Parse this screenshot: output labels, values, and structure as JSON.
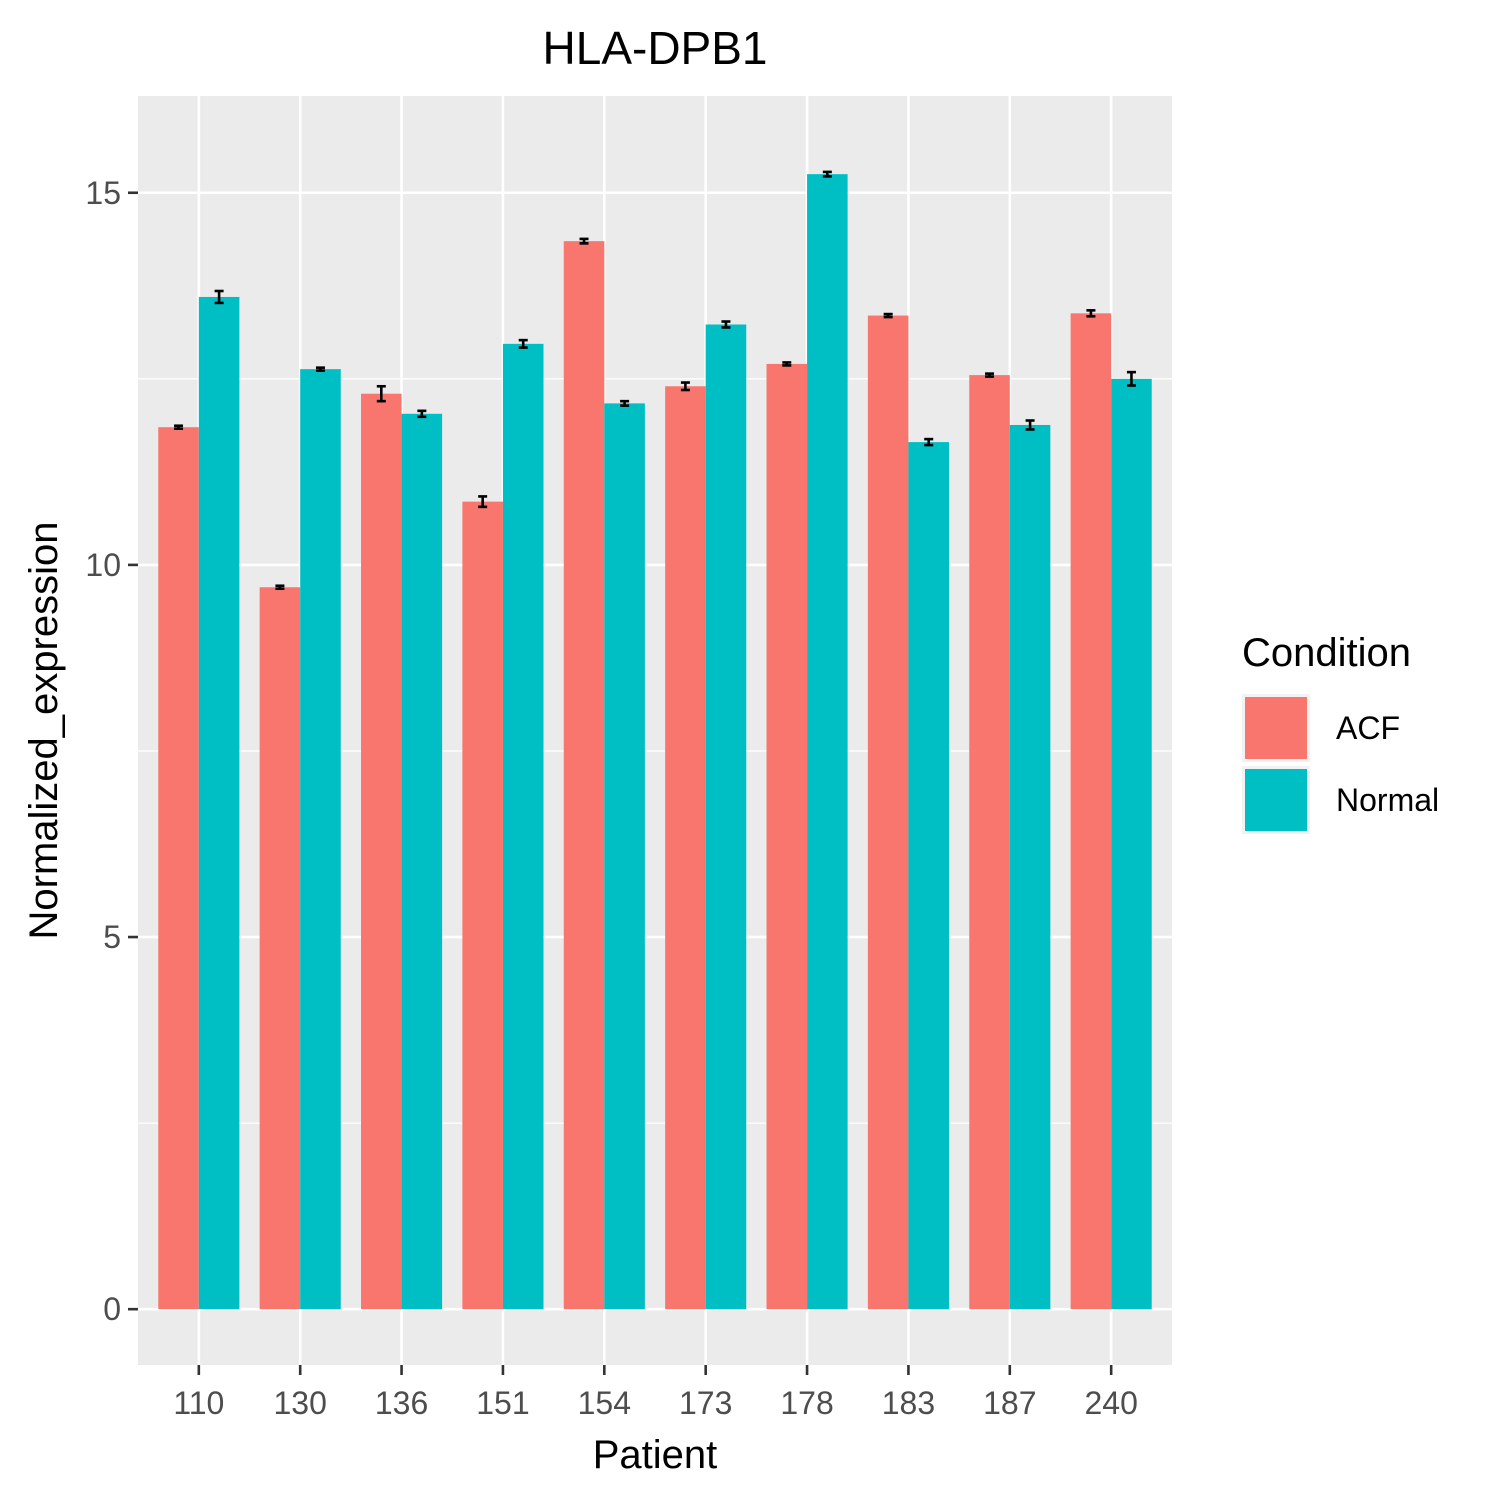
{
  "chart_data": {
    "type": "bar",
    "title": "HLA-DPB1",
    "xlabel": "Patient",
    "ylabel": "Normalized_expression",
    "categories": [
      "110",
      "130",
      "136",
      "151",
      "154",
      "173",
      "178",
      "183",
      "187",
      "240"
    ],
    "series": [
      {
        "name": "ACF",
        "color": "#F8766D",
        "values": [
          11.85,
          9.7,
          12.3,
          10.85,
          14.35,
          12.4,
          12.7,
          13.35,
          12.55,
          13.38
        ],
        "errors": [
          0.02,
          0.02,
          0.1,
          0.07,
          0.03,
          0.05,
          0.02,
          0.02,
          0.02,
          0.04
        ]
      },
      {
        "name": "Normal",
        "color": "#00BFC4",
        "values": [
          13.6,
          12.63,
          12.03,
          12.97,
          12.17,
          13.23,
          15.25,
          11.65,
          11.88,
          12.5
        ],
        "errors": [
          0.08,
          0.02,
          0.04,
          0.05,
          0.03,
          0.04,
          0.03,
          0.04,
          0.06,
          0.09
        ]
      }
    ],
    "ylim": [
      -0.75,
      16.3
    ],
    "yticks": [
      0,
      5,
      10,
      15
    ],
    "ytick_labels": [
      "0",
      "5",
      "10",
      "15"
    ],
    "grid": true,
    "panel_background": "#EBEBEB",
    "legend": {
      "title": "Condition",
      "position": "right",
      "entries": [
        "ACF",
        "Normal"
      ]
    }
  }
}
